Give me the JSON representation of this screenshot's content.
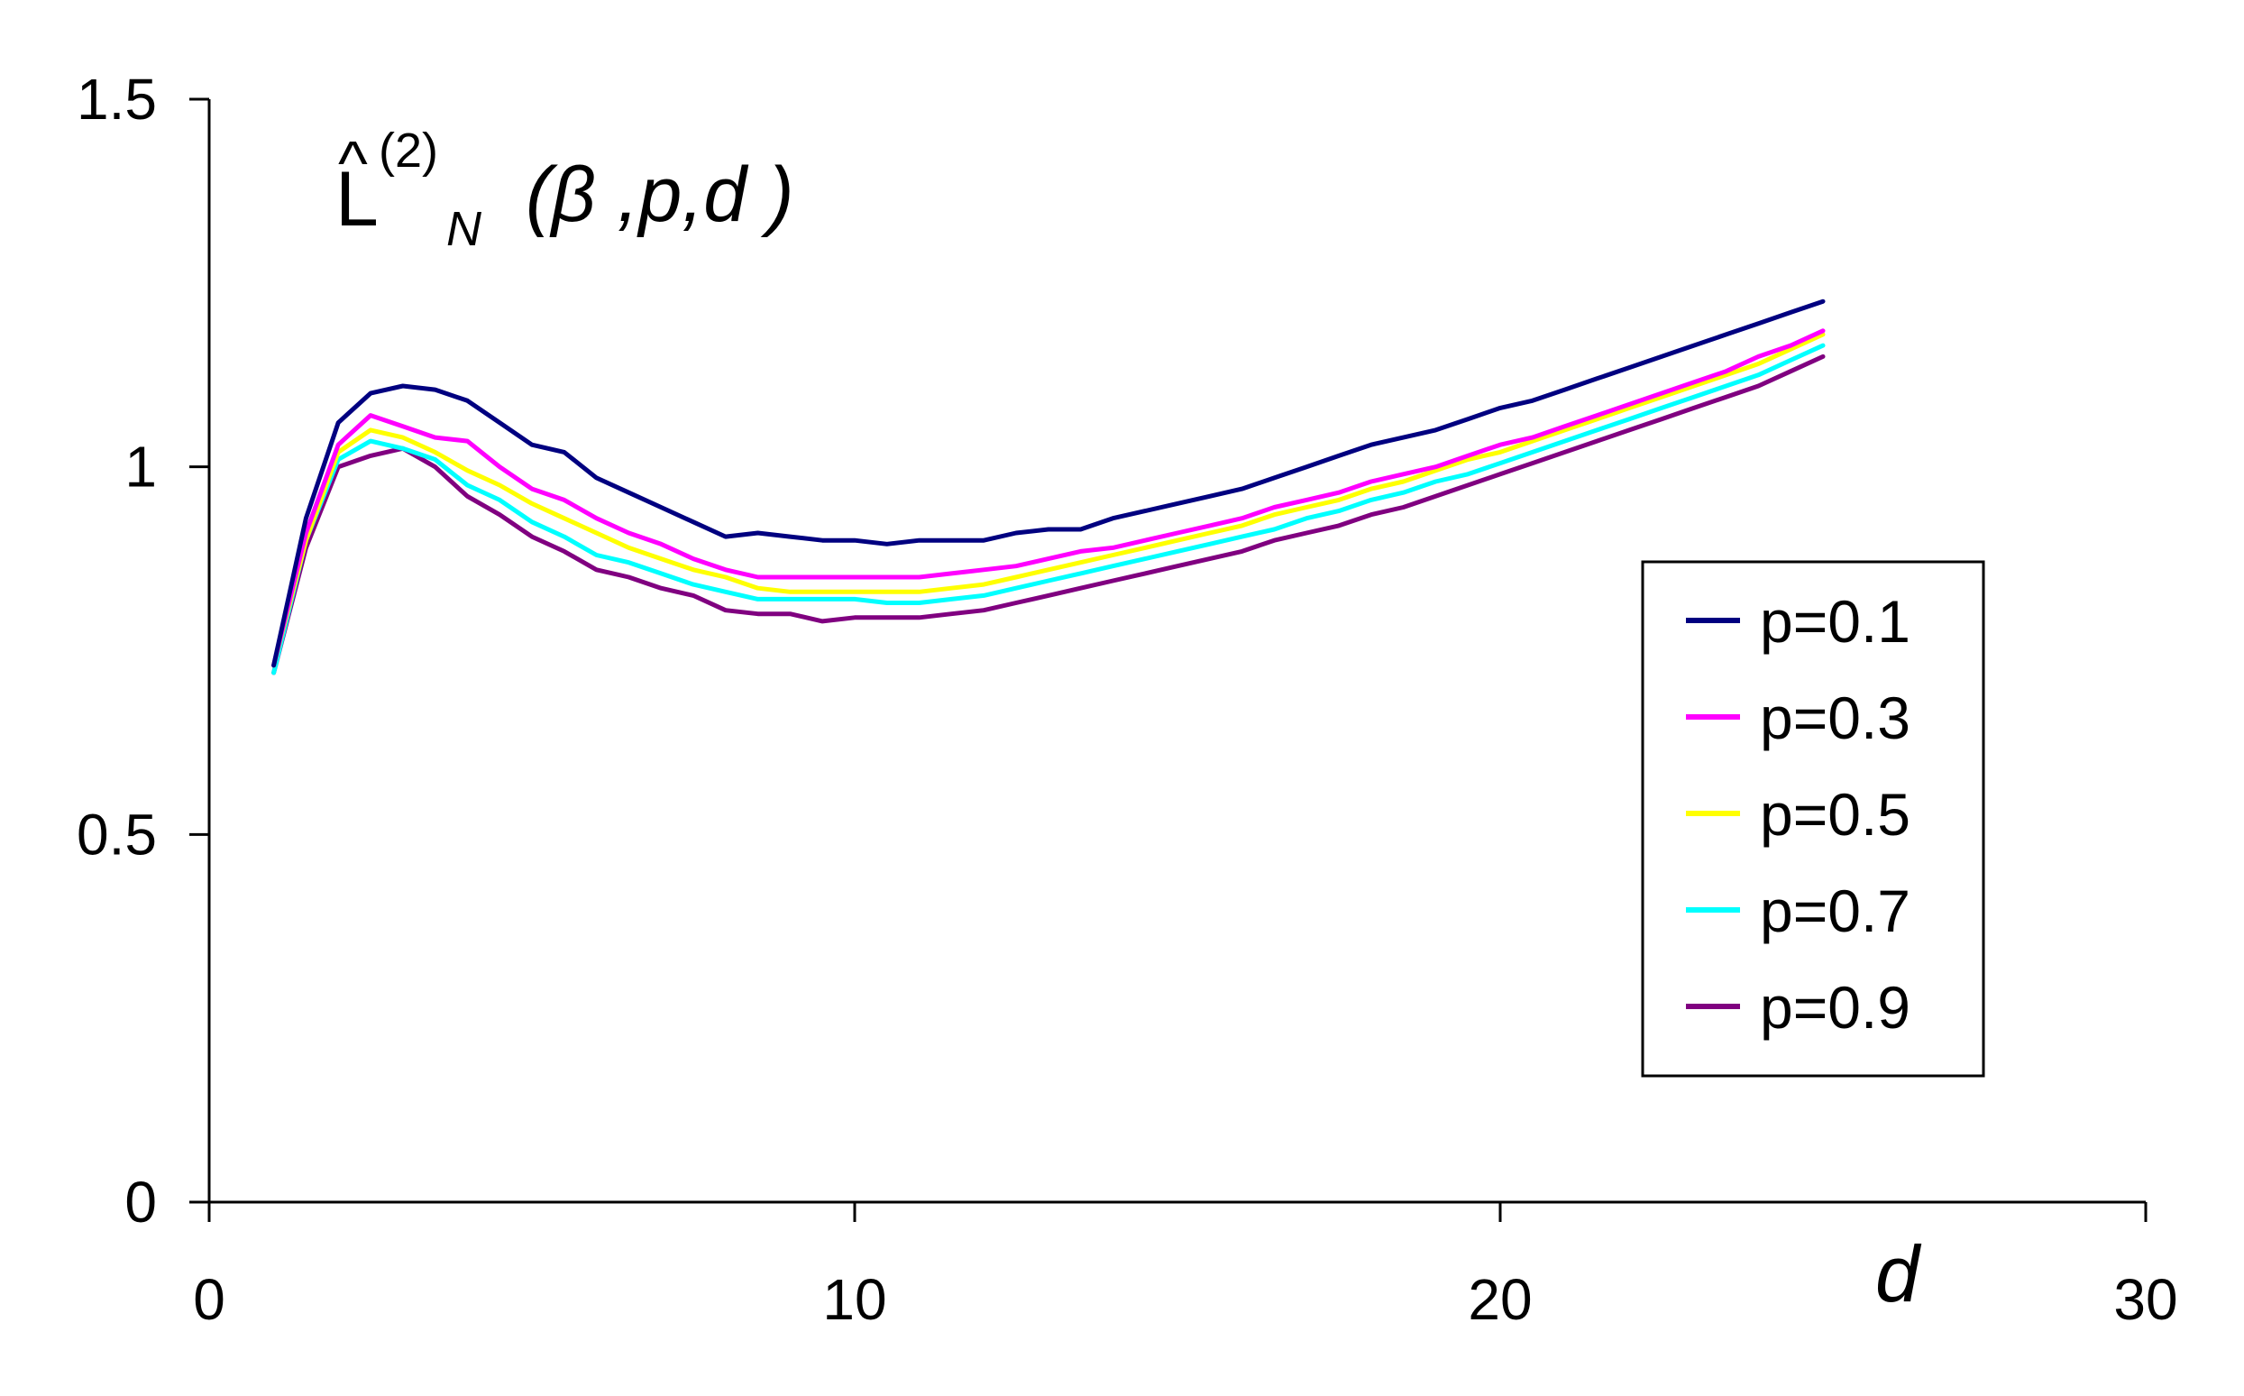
{
  "chart_data": {
    "type": "line",
    "title": "",
    "formula": {
      "base": "L",
      "hat": "^",
      "superscript": "(2)",
      "subscript": "N",
      "args": "(β ,p,d )"
    },
    "xlabel": "d",
    "ylabel": "",
    "xlim": [
      0,
      30
    ],
    "ylim": [
      0,
      1.5
    ],
    "x_ticks": [
      0,
      10,
      20,
      30
    ],
    "x_tick_labels": [
      "0",
      "10",
      "20",
      "30"
    ],
    "y_ticks": [
      0,
      0.5,
      1,
      1.5
    ],
    "y_tick_labels": [
      "0",
      "0.5",
      "1",
      "1.5"
    ],
    "grid": false,
    "legend_position": "right",
    "x": [
      1,
      1.5,
      2,
      2.5,
      3,
      3.5,
      4,
      4.5,
      5,
      5.5,
      6,
      6.5,
      7,
      7.5,
      8,
      8.5,
      9,
      9.5,
      10,
      10.5,
      11,
      11.5,
      12,
      12.5,
      13,
      13.5,
      14,
      14.5,
      15,
      15.5,
      16,
      16.5,
      17,
      17.5,
      18,
      18.5,
      19,
      19.5,
      20,
      20.5,
      21,
      21.5,
      22,
      22.5,
      23,
      23.5,
      24,
      24.5,
      25
    ],
    "series": [
      {
        "name": "p=0.1",
        "color": "#000080",
        "values": [
          0.73,
          0.93,
          1.06,
          1.1,
          1.11,
          1.105,
          1.09,
          1.06,
          1.03,
          1.02,
          0.985,
          0.965,
          0.945,
          0.925,
          0.905,
          0.91,
          0.905,
          0.9,
          0.9,
          0.895,
          0.9,
          0.9,
          0.9,
          0.91,
          0.915,
          0.915,
          0.93,
          0.94,
          0.95,
          0.96,
          0.97,
          0.985,
          1.0,
          1.015,
          1.03,
          1.04,
          1.05,
          1.065,
          1.08,
          1.09,
          1.105,
          1.12,
          1.135,
          1.15,
          1.165,
          1.18,
          1.195,
          1.21,
          1.225
        ]
      },
      {
        "name": "p=0.3",
        "color": "#FF00FF",
        "values": [
          0.73,
          0.91,
          1.03,
          1.07,
          1.055,
          1.04,
          1.035,
          1.0,
          0.97,
          0.955,
          0.93,
          0.91,
          0.895,
          0.875,
          0.86,
          0.85,
          0.85,
          0.85,
          0.85,
          0.85,
          0.85,
          0.855,
          0.86,
          0.865,
          0.875,
          0.885,
          0.89,
          0.9,
          0.91,
          0.92,
          0.93,
          0.945,
          0.955,
          0.965,
          0.98,
          0.99,
          1.0,
          1.015,
          1.03,
          1.04,
          1.055,
          1.07,
          1.085,
          1.1,
          1.115,
          1.13,
          1.15,
          1.165,
          1.185
        ]
      },
      {
        "name": "p=0.5",
        "color": "#FFFF00",
        "values": [
          0.73,
          0.9,
          1.02,
          1.05,
          1.04,
          1.02,
          0.995,
          0.975,
          0.95,
          0.93,
          0.91,
          0.89,
          0.875,
          0.86,
          0.85,
          0.835,
          0.83,
          0.83,
          0.83,
          0.83,
          0.83,
          0.835,
          0.84,
          0.85,
          0.86,
          0.87,
          0.88,
          0.89,
          0.9,
          0.91,
          0.92,
          0.935,
          0.945,
          0.955,
          0.97,
          0.98,
          0.995,
          1.01,
          1.02,
          1.035,
          1.05,
          1.065,
          1.08,
          1.095,
          1.11,
          1.125,
          1.14,
          1.16,
          1.18
        ]
      },
      {
        "name": "p=0.7",
        "color": "#00FFFF",
        "values": [
          0.72,
          0.9,
          1.01,
          1.035,
          1.025,
          1.01,
          0.975,
          0.955,
          0.925,
          0.905,
          0.88,
          0.87,
          0.855,
          0.84,
          0.83,
          0.82,
          0.82,
          0.82,
          0.82,
          0.815,
          0.815,
          0.82,
          0.825,
          0.835,
          0.845,
          0.855,
          0.865,
          0.875,
          0.885,
          0.895,
          0.905,
          0.915,
          0.93,
          0.94,
          0.955,
          0.965,
          0.98,
          0.99,
          1.005,
          1.02,
          1.035,
          1.05,
          1.065,
          1.08,
          1.095,
          1.11,
          1.125,
          1.145,
          1.165
        ]
      },
      {
        "name": "p=0.9",
        "color": "#800080",
        "values": [
          0.72,
          0.89,
          1.0,
          1.015,
          1.025,
          1.0,
          0.96,
          0.935,
          0.905,
          0.885,
          0.86,
          0.85,
          0.835,
          0.825,
          0.805,
          0.8,
          0.8,
          0.79,
          0.795,
          0.795,
          0.795,
          0.8,
          0.805,
          0.815,
          0.825,
          0.835,
          0.845,
          0.855,
          0.865,
          0.875,
          0.885,
          0.9,
          0.91,
          0.92,
          0.935,
          0.945,
          0.96,
          0.975,
          0.99,
          1.005,
          1.02,
          1.035,
          1.05,
          1.065,
          1.08,
          1.095,
          1.11,
          1.13,
          1.15
        ]
      }
    ]
  }
}
